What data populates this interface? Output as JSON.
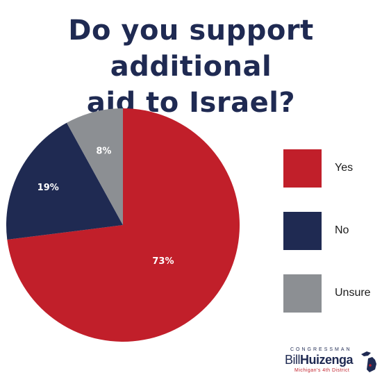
{
  "title_lines": [
    "Do you support additional",
    "aid to Israel?"
  ],
  "chart_data": {
    "type": "pie",
    "title": "Do you support additional aid to Israel?",
    "slices": [
      {
        "label": "Yes",
        "value": 73,
        "display": "73%",
        "color": "#c11f2a"
      },
      {
        "label": "No",
        "value": 19,
        "display": "19%",
        "color": "#1f2a52"
      },
      {
        "label": "Unsure",
        "value": 8,
        "display": "8%",
        "color": "#8c8f93"
      }
    ]
  },
  "legend": [
    {
      "label": "Yes",
      "color": "#c11f2a"
    },
    {
      "label": "No",
      "color": "#1f2a52"
    },
    {
      "label": "Unsure",
      "color": "#8c8f93"
    }
  ],
  "branding": {
    "top": "CONGRESSMAN",
    "first": "Bill",
    "last": "Huizenga",
    "subtitle": "Michigan's 4th District",
    "icon": "michigan-map-icon"
  }
}
